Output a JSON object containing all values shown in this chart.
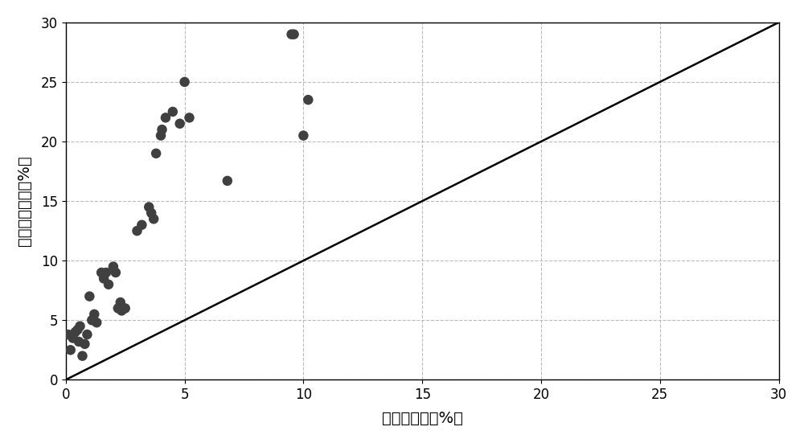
{
  "x_data": [
    0.1,
    0.2,
    0.3,
    0.4,
    0.5,
    0.55,
    0.6,
    0.7,
    0.8,
    0.9,
    1.0,
    1.1,
    1.2,
    1.3,
    1.5,
    1.6,
    1.7,
    1.8,
    2.0,
    2.1,
    2.2,
    2.3,
    2.35,
    2.5,
    3.0,
    3.2,
    3.5,
    3.6,
    3.7,
    3.8,
    4.0,
    4.05,
    4.2,
    4.5,
    4.8,
    5.0,
    5.2,
    6.8,
    9.5,
    9.6,
    10.0,
    10.2
  ],
  "y_data": [
    3.8,
    2.5,
    3.5,
    4.0,
    4.2,
    3.2,
    4.5,
    2.0,
    3.0,
    3.8,
    7.0,
    5.0,
    5.5,
    4.8,
    9.0,
    8.5,
    9.0,
    8.0,
    9.5,
    9.0,
    6.0,
    6.5,
    5.8,
    6.0,
    12.5,
    13.0,
    14.5,
    14.0,
    13.5,
    19.0,
    20.5,
    21.0,
    22.0,
    22.5,
    21.5,
    25.0,
    22.0,
    16.7,
    29.0,
    29.0,
    20.5,
    23.5
  ],
  "line_x": [
    0,
    30
  ],
  "line_y": [
    0,
    30
  ],
  "xlabel": "分析孔隙度（%）",
  "ylabel": "校正前孔隙度（%）",
  "xlim": [
    0,
    30
  ],
  "ylim": [
    0,
    30
  ],
  "xticks": [
    0,
    5,
    10,
    15,
    20,
    25,
    30
  ],
  "yticks": [
    0,
    5,
    10,
    15,
    20,
    25,
    30
  ],
  "marker_color": "#404040",
  "marker_size": 9,
  "line_color": "#000000",
  "background_color": "#ffffff",
  "grid_color": "#bbbbbb",
  "grid_style": "--"
}
